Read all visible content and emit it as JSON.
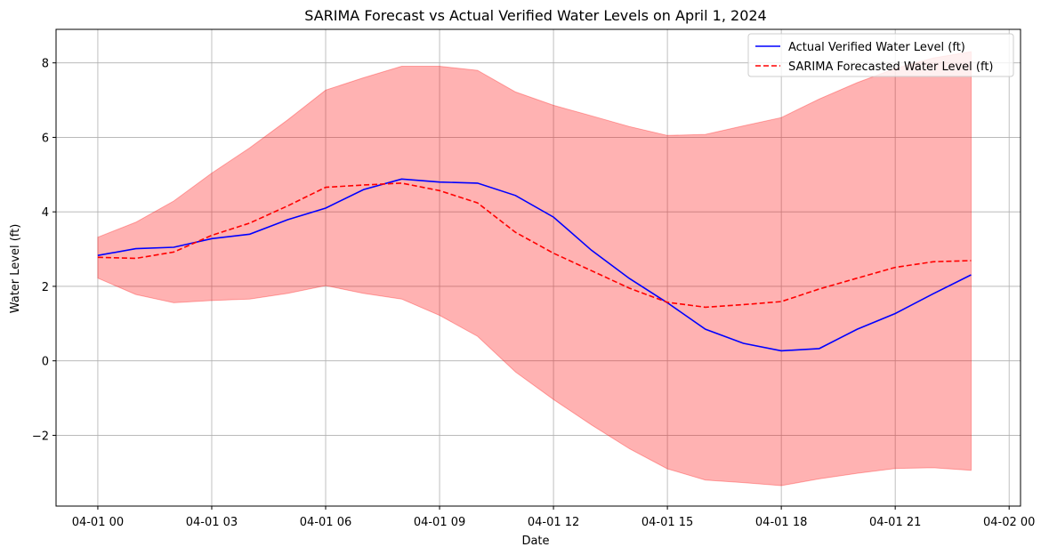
{
  "chart_data": {
    "type": "line",
    "title": "SARIMA Forecast vs Actual Verified Water Levels on April 1, 2024",
    "xlabel": "Date",
    "ylabel": "Water Level (ft)",
    "x_unit": "hours after 04-01 00",
    "xlim": [
      -1.1,
      24.3
    ],
    "ylim": [
      -3.9,
      8.9
    ],
    "x_ticks": [
      {
        "x": 0,
        "label": "04-01 00"
      },
      {
        "x": 3,
        "label": "04-01 03"
      },
      {
        "x": 6,
        "label": "04-01 06"
      },
      {
        "x": 9,
        "label": "04-01 09"
      },
      {
        "x": 12,
        "label": "04-01 12"
      },
      {
        "x": 15,
        "label": "04-01 15"
      },
      {
        "x": 18,
        "label": "04-01 18"
      },
      {
        "x": 21,
        "label": "04-01 21"
      },
      {
        "x": 24,
        "label": "04-02 00"
      }
    ],
    "y_ticks": [
      {
        "y": -2,
        "label": "−2"
      },
      {
        "y": 0,
        "label": "0"
      },
      {
        "y": 2,
        "label": "2"
      },
      {
        "y": 4,
        "label": "4"
      },
      {
        "y": 6,
        "label": "6"
      },
      {
        "y": 8,
        "label": "8"
      }
    ],
    "grid": true,
    "legend_position": "top-right",
    "x": [
      0,
      1,
      2,
      3,
      4,
      5,
      6,
      7,
      8,
      9,
      10,
      11,
      12,
      13,
      14,
      15,
      16,
      17,
      18,
      19,
      20,
      21,
      22,
      23
    ],
    "series": [
      {
        "name": "Actual Verified Water Level (ft)",
        "style": "solid",
        "color": "#0000ff",
        "values": [
          2.83,
          3.01,
          3.05,
          3.28,
          3.4,
          3.79,
          4.1,
          4.6,
          4.88,
          4.8,
          4.77,
          4.44,
          3.86,
          2.97,
          2.21,
          1.56,
          0.85,
          0.47,
          0.27,
          0.33,
          0.85,
          1.27,
          1.8,
          2.31
        ]
      },
      {
        "name": "SARIMA Forecasted Water Level (ft)",
        "style": "dashed",
        "color": "#ff0000",
        "values": [
          2.78,
          2.75,
          2.92,
          3.37,
          3.7,
          4.16,
          4.66,
          4.72,
          4.77,
          4.57,
          4.24,
          3.45,
          2.89,
          2.42,
          1.95,
          1.57,
          1.44,
          1.51,
          1.59,
          1.93,
          2.22,
          2.51,
          2.66,
          2.69
        ]
      }
    ],
    "confidence_band": {
      "color": "#ff0000",
      "opacity": 0.3,
      "upper": [
        3.32,
        3.72,
        4.29,
        5.04,
        5.72,
        6.47,
        7.27,
        7.6,
        7.91,
        7.91,
        7.8,
        7.22,
        6.86,
        6.58,
        6.29,
        6.05,
        6.08,
        6.31,
        6.53,
        7.03,
        7.47,
        7.85,
        8.13,
        8.3
      ],
      "lower": [
        2.22,
        1.78,
        1.56,
        1.62,
        1.66,
        1.81,
        2.02,
        1.81,
        1.66,
        1.22,
        0.66,
        -0.3,
        -1.04,
        -1.72,
        -2.36,
        -2.9,
        -3.2,
        -3.27,
        -3.35,
        -3.17,
        -3.02,
        -2.89,
        -2.87,
        -2.94
      ]
    }
  }
}
